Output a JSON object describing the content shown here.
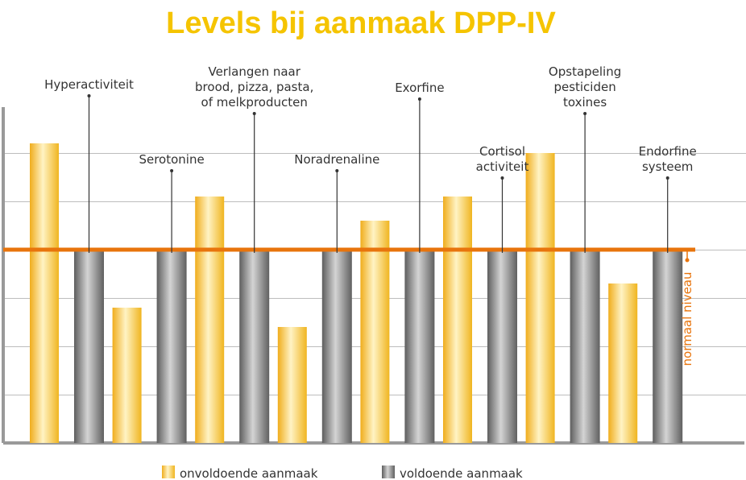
{
  "chart_data": {
    "type": "bar",
    "title": "Levels bij aanmaak DPP-IV",
    "categories": [
      [
        "Hyperactiviteit"
      ],
      [
        "Serotonine"
      ],
      [
        "Verlangen naar",
        "brood, pizza, pasta,",
        "of melkproducten"
      ],
      [
        "Noradrenaline"
      ],
      [
        "Exorfine"
      ],
      [
        "Cortisol",
        "activiteit"
      ],
      [
        "Opstapeling",
        "pesticiden",
        "toxines"
      ],
      [
        "Endorfine",
        "systeem"
      ]
    ],
    "series": [
      {
        "name": "onvoldoende aanmaak",
        "values": [
          6.2,
          2.8,
          5.1,
          2.4,
          4.6,
          5.1,
          6.0,
          3.3
        ]
      },
      {
        "name": "voldoende aanmaak",
        "values": [
          4.0,
          4.0,
          4.0,
          4.0,
          4.0,
          4.0,
          4.0,
          4.0
        ]
      }
    ],
    "reference_line": {
      "value": 4.0,
      "label": "normaal niveau"
    },
    "ylim": [
      0,
      7
    ],
    "grid": true,
    "legend_position": "bottom",
    "colors": {
      "title": "#f5c400",
      "reference": "#e8740c",
      "gold_light": "#fff3c4",
      "gold_dark": "#f0ad1c",
      "gray_light": "#d4d4d4",
      "gray_dark": "#5e5e5e"
    }
  }
}
